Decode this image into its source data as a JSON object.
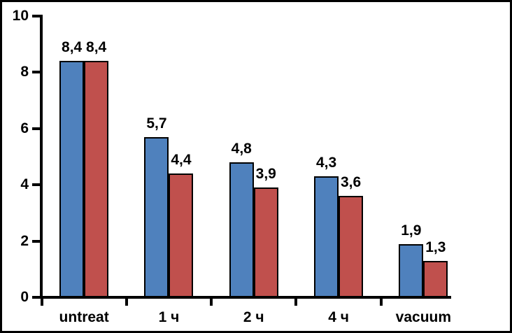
{
  "chart_data": {
    "type": "bar",
    "categories": [
      "untreat",
      "1 ч",
      "2 ч",
      "4 ч",
      "vacuum"
    ],
    "series": [
      {
        "name": "series-1",
        "color": "#4F81BD",
        "values": [
          8.4,
          5.7,
          4.8,
          4.3,
          1.9
        ],
        "labels": [
          "8,4",
          "5,7",
          "4,8",
          "4,3",
          "1,9"
        ]
      },
      {
        "name": "series-2",
        "color": "#C0504D",
        "values": [
          8.4,
          4.4,
          3.9,
          3.6,
          1.3
        ],
        "labels": [
          "8,4",
          "4,4",
          "3,9",
          "3,6",
          "1,3"
        ]
      }
    ],
    "title": "",
    "xlabel": "",
    "ylabel": "",
    "ylim": [
      0,
      10
    ],
    "yticks": [
      0,
      2,
      4,
      6,
      8,
      10
    ],
    "ytick_labels": [
      "0",
      "2",
      "4",
      "6",
      "8",
      "10"
    ],
    "decimal_separator": ",",
    "grid": false,
    "legend": "none",
    "bar_outline_color": "#000000",
    "axis_color": "#000000",
    "text_color": "#000000",
    "background_color": "#ffffff",
    "frame_border_color": "#000000"
  }
}
